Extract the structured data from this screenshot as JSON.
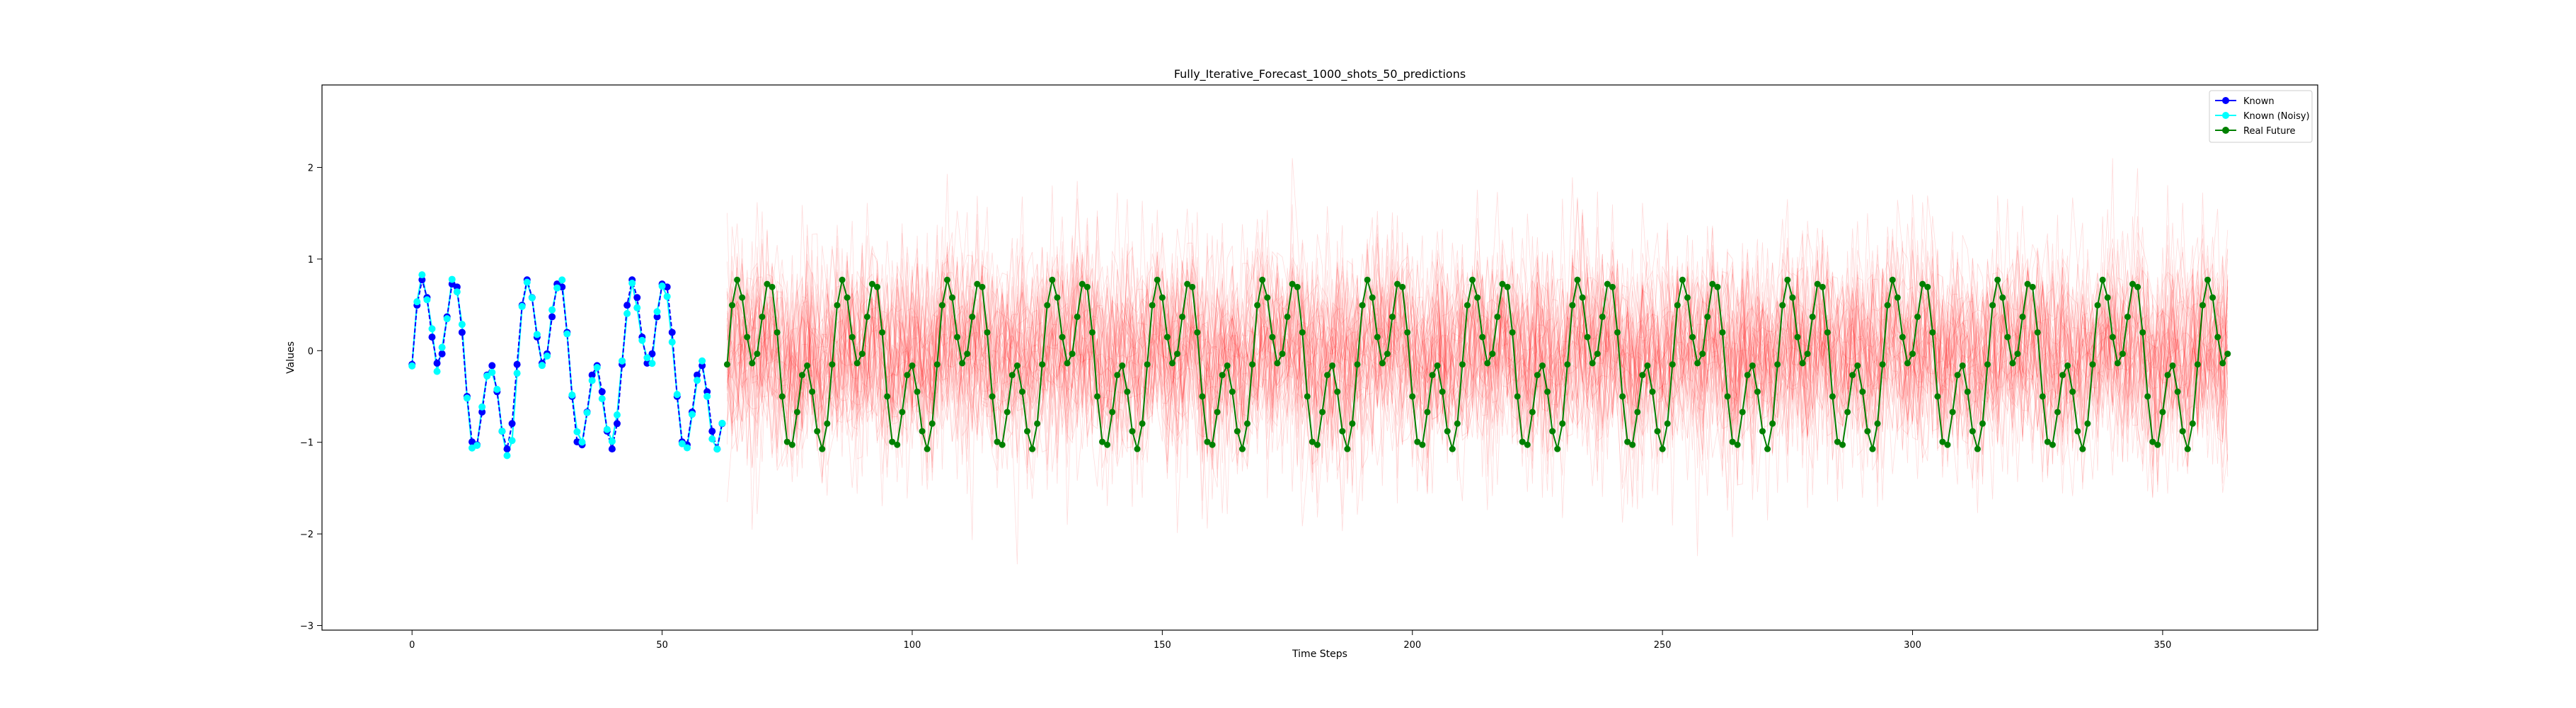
{
  "chart_data": {
    "type": "line",
    "title": "Fully_Iterative_Forecast_1000_shots_50_predictions",
    "xlabel": "Time Steps",
    "ylabel": "Values",
    "xlim": [
      -18,
      381
    ],
    "ylim": [
      -3.05,
      2.9
    ],
    "x_ticks": [
      0,
      50,
      100,
      150,
      200,
      250,
      300,
      350
    ],
    "y_ticks": [
      -3,
      -2,
      -1,
      0,
      1,
      2
    ],
    "grid": false,
    "legend_position": "top-right",
    "known_range": [
      0,
      63
    ],
    "future_range": [
      63,
      363
    ],
    "signal_description": {
      "components": [
        {
          "amplitude": 0.6,
          "period": 21,
          "phase": 0.0
        },
        {
          "amplitude": 0.6,
          "period": 7,
          "phase": 0.0
        }
      ],
      "offset": -0.15
    },
    "prediction_paths": 50,
    "prediction_noise_std": 0.55,
    "series": [
      {
        "name": "Known",
        "color": "#0000ff",
        "marker": "circle"
      },
      {
        "name": "Known (Noisy)",
        "color": "#00ffff",
        "marker": "circle"
      },
      {
        "name": "Real Future",
        "color": "#008000",
        "marker": "circle"
      },
      {
        "name": "",
        "color": "#ff0000",
        "marker": "none",
        "role": "predictions"
      }
    ]
  }
}
